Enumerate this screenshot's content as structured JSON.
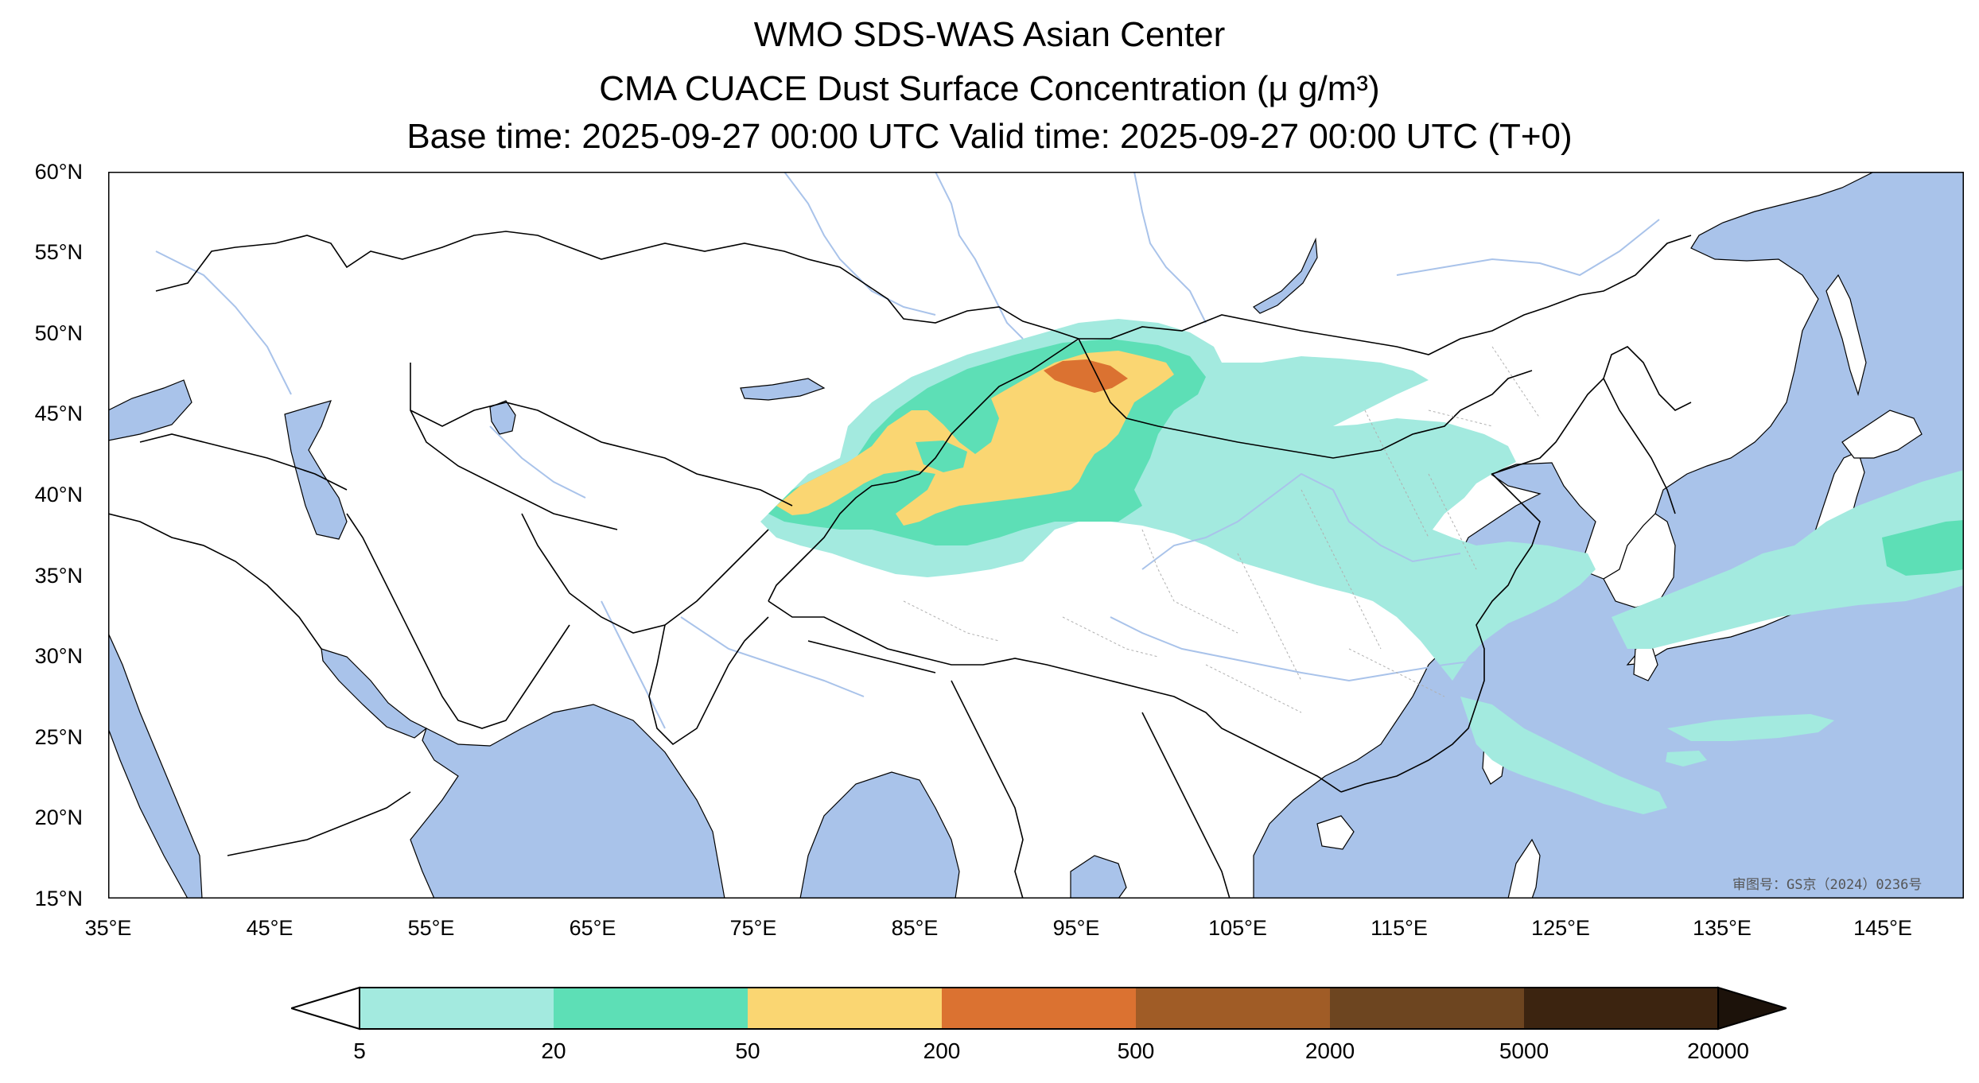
{
  "title": {
    "line1": "WMO SDS-WAS Asian Center",
    "line2": "CMA CUACE Dust Surface Concentration (μ g/m³)",
    "line3": "Base time: 2025-09-27 00:00 UTC Valid time: 2025-09-27 00:00 UTC (T+0)"
  },
  "map": {
    "extent": {
      "lon_min": 35,
      "lon_max": 150,
      "lat_min": 15,
      "lat_max": 60
    },
    "lat_ticks": [
      {
        "value": 60,
        "label": "60°N"
      },
      {
        "value": 55,
        "label": "55°N"
      },
      {
        "value": 50,
        "label": "50°N"
      },
      {
        "value": 45,
        "label": "45°N"
      },
      {
        "value": 40,
        "label": "40°N"
      },
      {
        "value": 35,
        "label": "35°N"
      },
      {
        "value": 30,
        "label": "30°N"
      },
      {
        "value": 25,
        "label": "25°N"
      },
      {
        "value": 20,
        "label": "20°N"
      },
      {
        "value": 15,
        "label": "15°N"
      }
    ],
    "lon_ticks": [
      {
        "value": 35,
        "label": "35°E"
      },
      {
        "value": 45,
        "label": "45°E"
      },
      {
        "value": 55,
        "label": "55°E"
      },
      {
        "value": 65,
        "label": "65°E"
      },
      {
        "value": 75,
        "label": "75°E"
      },
      {
        "value": 85,
        "label": "85°E"
      },
      {
        "value": 95,
        "label": "95°E"
      },
      {
        "value": 105,
        "label": "105°E"
      },
      {
        "value": 115,
        "label": "115°E"
      },
      {
        "value": 125,
        "label": "125°E"
      },
      {
        "value": 135,
        "label": "135°E"
      },
      {
        "value": 145,
        "label": "145°E"
      }
    ],
    "watermark": "审图号：GS京（2024）0236号",
    "colors": {
      "water": "#a9c3ea",
      "land": "#ffffff",
      "border": "#000000",
      "province": "#b0b0b0",
      "river": "#a9c3ea"
    }
  },
  "colorbar": {
    "labels": [
      "5",
      "20",
      "50",
      "200",
      "500",
      "2000",
      "5000",
      "20000"
    ],
    "colors": [
      "#a3eadf",
      "#5ddfb6",
      "#fad672",
      "#db7231",
      "#a05c26",
      "#6d4520",
      "#3c2410"
    ],
    "under_color": "#ffffff",
    "over_color": "#1c120a"
  }
}
